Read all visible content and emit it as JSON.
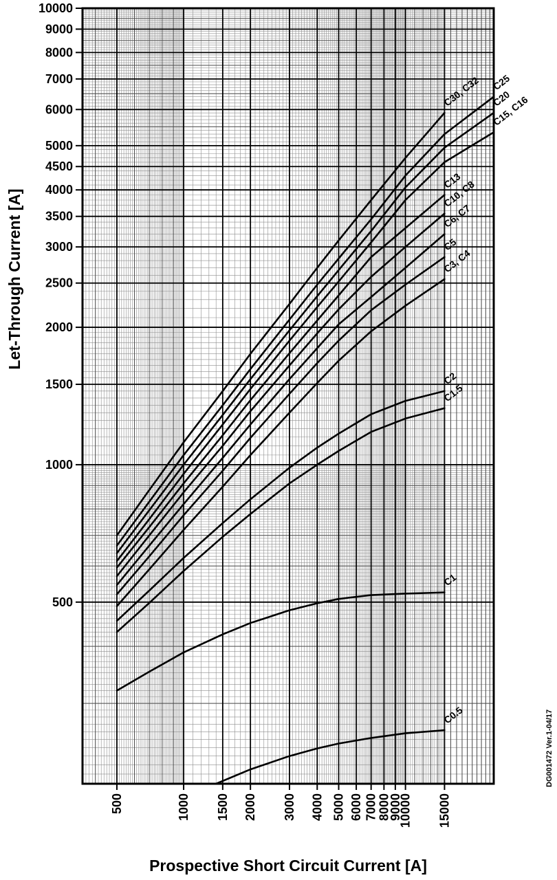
{
  "chart_data": {
    "type": "line",
    "title": "",
    "xlabel": "Prospective Short Circuit Current [A]",
    "ylabel": "Let-Through Current [A]",
    "doc_code": "DG001472  Ver.1-04/17",
    "x_scale": "log",
    "y_scale": "log",
    "xlim": [
      350,
      25000
    ],
    "ylim": [
      200,
      10000
    ],
    "x_ticks": [
      500,
      1000,
      1500,
      2000,
      3000,
      4000,
      5000,
      6000,
      7000,
      8000,
      9000,
      10000,
      15000
    ],
    "y_ticks": [
      500,
      1000,
      1500,
      2000,
      2500,
      3000,
      3500,
      4000,
      4500,
      5000,
      6000,
      7000,
      8000,
      9000,
      10000
    ],
    "grid": "log-minor-on",
    "legend": "curve-end-labels",
    "line_color": "#000000",
    "background": "#ffffff",
    "series": [
      {
        "name": "C30, C32",
        "label_outside": false,
        "points": [
          [
            500,
            700
          ],
          [
            700,
            880
          ],
          [
            1000,
            1120
          ],
          [
            1500,
            1450
          ],
          [
            2000,
            1750
          ],
          [
            3000,
            2250
          ],
          [
            4000,
            2700
          ],
          [
            5000,
            3100
          ],
          [
            7000,
            3800
          ],
          [
            10000,
            4700
          ],
          [
            15000,
            5900
          ]
        ]
      },
      {
        "name": "C25",
        "label_outside": true,
        "points": [
          [
            500,
            665
          ],
          [
            700,
            830
          ],
          [
            1000,
            1050
          ],
          [
            1500,
            1350
          ],
          [
            2000,
            1620
          ],
          [
            3000,
            2080
          ],
          [
            4000,
            2480
          ],
          [
            5000,
            2830
          ],
          [
            7000,
            3450
          ],
          [
            10000,
            4300
          ],
          [
            15000,
            5300
          ],
          [
            25000,
            6400
          ]
        ]
      },
      {
        "name": "C20",
        "label_outside": true,
        "points": [
          [
            500,
            640
          ],
          [
            700,
            795
          ],
          [
            1000,
            1000
          ],
          [
            1500,
            1285
          ],
          [
            2000,
            1540
          ],
          [
            3000,
            1970
          ],
          [
            4000,
            2340
          ],
          [
            5000,
            2670
          ],
          [
            7000,
            3250
          ],
          [
            10000,
            4050
          ],
          [
            15000,
            4950
          ],
          [
            25000,
            5900
          ]
        ]
      },
      {
        "name": "C15, C16",
        "label_outside": true,
        "points": [
          [
            500,
            615
          ],
          [
            700,
            760
          ],
          [
            1000,
            955
          ],
          [
            1500,
            1225
          ],
          [
            2000,
            1465
          ],
          [
            3000,
            1870
          ],
          [
            4000,
            2215
          ],
          [
            5000,
            2520
          ],
          [
            7000,
            3070
          ],
          [
            10000,
            3800
          ],
          [
            15000,
            4600
          ],
          [
            25000,
            5350
          ]
        ]
      },
      {
        "name": "C13",
        "label_outside": false,
        "points": [
          [
            500,
            595
          ],
          [
            700,
            730
          ],
          [
            1000,
            910
          ],
          [
            1500,
            1160
          ],
          [
            2000,
            1385
          ],
          [
            3000,
            1755
          ],
          [
            4000,
            2070
          ],
          [
            5000,
            2350
          ],
          [
            7000,
            2850
          ],
          [
            10000,
            3300
          ],
          [
            15000,
            3900
          ]
        ]
      },
      {
        "name": "C10, C8",
        "label_outside": false,
        "points": [
          [
            500,
            570
          ],
          [
            700,
            700
          ],
          [
            1000,
            870
          ],
          [
            1500,
            1100
          ],
          [
            2000,
            1310
          ],
          [
            3000,
            1650
          ],
          [
            4000,
            1940
          ],
          [
            5000,
            2190
          ],
          [
            7000,
            2580
          ],
          [
            10000,
            3000
          ],
          [
            15000,
            3550
          ]
        ]
      },
      {
        "name": "C6, C7",
        "label_outside": false,
        "points": [
          [
            500,
            545
          ],
          [
            700,
            665
          ],
          [
            1000,
            820
          ],
          [
            1500,
            1035
          ],
          [
            2000,
            1225
          ],
          [
            3000,
            1540
          ],
          [
            4000,
            1800
          ],
          [
            5000,
            2030
          ],
          [
            7000,
            2330
          ],
          [
            10000,
            2700
          ],
          [
            15000,
            3200
          ]
        ]
      },
      {
        "name": "C5",
        "label_outside": false,
        "points": [
          [
            500,
            520
          ],
          [
            700,
            630
          ],
          [
            1000,
            775
          ],
          [
            1500,
            970
          ],
          [
            2000,
            1145
          ],
          [
            3000,
            1430
          ],
          [
            4000,
            1670
          ],
          [
            5000,
            1870
          ],
          [
            7000,
            2180
          ],
          [
            10000,
            2480
          ],
          [
            15000,
            2850
          ]
        ]
      },
      {
        "name": "C3, C4",
        "label_outside": false,
        "points": [
          [
            500,
            490
          ],
          [
            700,
            590
          ],
          [
            1000,
            720
          ],
          [
            1500,
            895
          ],
          [
            2000,
            1050
          ],
          [
            3000,
            1300
          ],
          [
            4000,
            1510
          ],
          [
            5000,
            1690
          ],
          [
            7000,
            1960
          ],
          [
            10000,
            2230
          ],
          [
            15000,
            2550
          ]
        ]
      },
      {
        "name": "C2",
        "label_outside": false,
        "points": [
          [
            500,
            455
          ],
          [
            700,
            530
          ],
          [
            1000,
            625
          ],
          [
            1500,
            745
          ],
          [
            2000,
            840
          ],
          [
            3000,
            985
          ],
          [
            4000,
            1090
          ],
          [
            5000,
            1170
          ],
          [
            7000,
            1290
          ],
          [
            10000,
            1380
          ],
          [
            15000,
            1450
          ]
        ]
      },
      {
        "name": "C1.5",
        "label_outside": false,
        "points": [
          [
            500,
            430
          ],
          [
            700,
            498
          ],
          [
            1000,
            585
          ],
          [
            1500,
            695
          ],
          [
            2000,
            780
          ],
          [
            3000,
            910
          ],
          [
            4000,
            1000
          ],
          [
            5000,
            1072
          ],
          [
            7000,
            1180
          ],
          [
            10000,
            1262
          ],
          [
            15000,
            1330
          ]
        ]
      },
      {
        "name": "C1",
        "label_outside": false,
        "points": [
          [
            500,
            320
          ],
          [
            700,
            352
          ],
          [
            1000,
            388
          ],
          [
            1500,
            425
          ],
          [
            2000,
            450
          ],
          [
            3000,
            480
          ],
          [
            4000,
            497
          ],
          [
            5000,
            508
          ],
          [
            7000,
            518
          ],
          [
            10000,
            522
          ],
          [
            15000,
            525
          ]
        ]
      },
      {
        "name": "C0.5",
        "label_outside": false,
        "points": [
          [
            1400,
            200
          ],
          [
            2000,
            215
          ],
          [
            3000,
            230
          ],
          [
            4000,
            239
          ],
          [
            5000,
            245
          ],
          [
            7000,
            252
          ],
          [
            10000,
            258
          ],
          [
            15000,
            262
          ]
        ]
      }
    ]
  }
}
